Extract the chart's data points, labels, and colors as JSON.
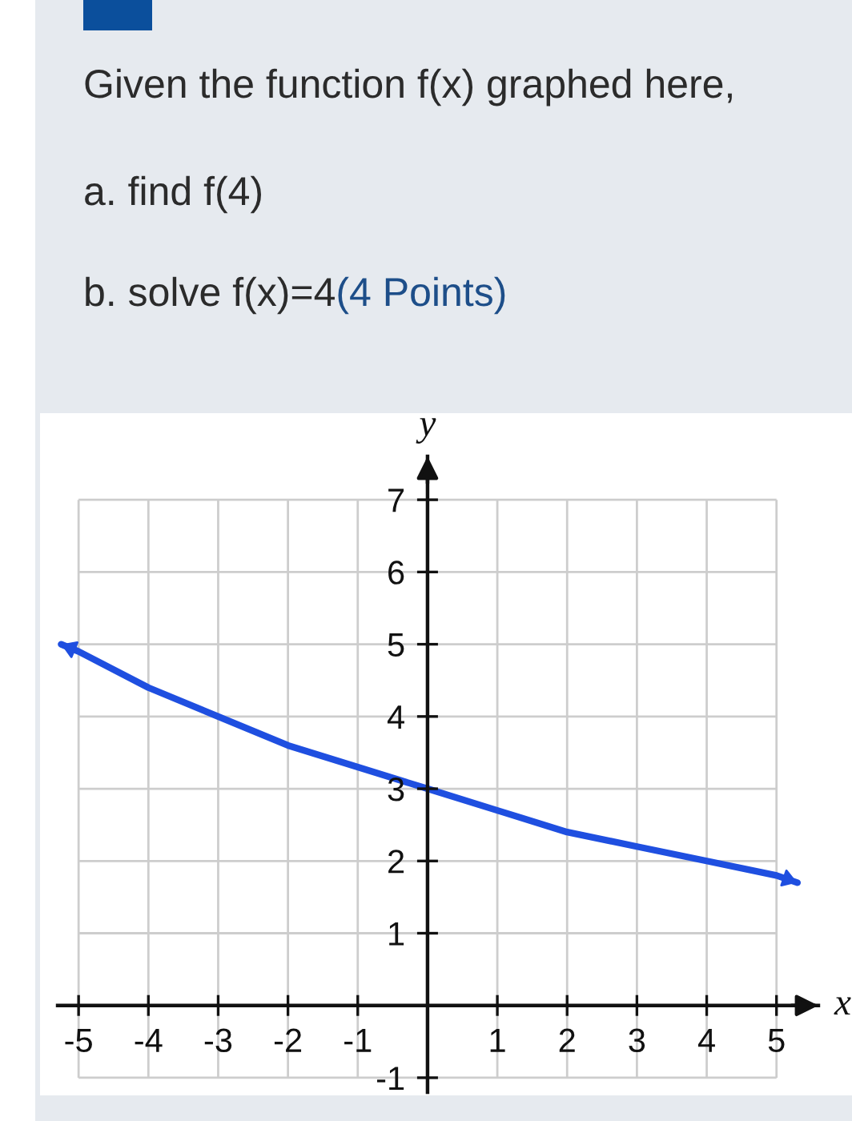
{
  "chart_data": {
    "type": "line",
    "title": "Given the function f(x) graphed here,",
    "annotations": [
      "a. find f(4)",
      "b. solve f(x)=4",
      "(4 Points)"
    ],
    "xlabel": "x",
    "ylabel": "y",
    "series": [
      {
        "color": "#1f4fe0",
        "x": [
          -5.25,
          -5,
          -4,
          -3,
          -2,
          -1,
          0,
          1,
          2,
          3,
          4,
          5,
          5.3
        ],
        "values": [
          5.0,
          4.9,
          4.4,
          4.0,
          3.6,
          3.3,
          3.0,
          2.7,
          2.4,
          2.2,
          2.0,
          1.8,
          1.7
        ]
      }
    ],
    "xlim": [
      -5.3,
      5.6
    ],
    "ylim": [
      -1.2,
      7.6
    ],
    "xticks": [
      -5,
      -4,
      -3,
      -2,
      -1,
      1,
      2,
      3,
      4,
      5
    ],
    "yticks": [
      -1,
      1,
      2,
      3,
      4,
      5,
      6,
      7
    ],
    "grid": true,
    "marker": "none",
    "line_style": "solid"
  }
}
